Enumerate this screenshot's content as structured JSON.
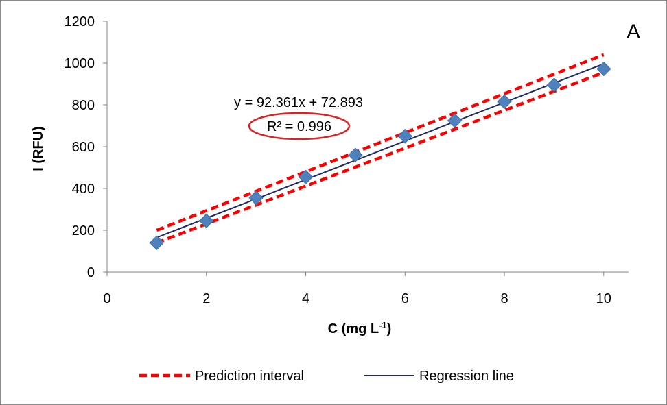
{
  "chart_data": {
    "type": "scatter",
    "panel_label": "A",
    "xlabel": "C (mg L",
    "xlabel_sup": "-1",
    "xlabel_end": ")",
    "ylabel": "I (RFU)",
    "xlim": [
      0,
      10.5
    ],
    "ylim": [
      0,
      1200
    ],
    "xticks": [
      0,
      2,
      4,
      6,
      8,
      10
    ],
    "yticks": [
      0,
      200,
      400,
      600,
      800,
      1000,
      1200
    ],
    "grid": false,
    "legend_position": "bottom",
    "series": [
      {
        "kind": "points",
        "marker": "diamond",
        "color": "#4f81bd",
        "x": [
          1,
          2,
          3,
          4,
          5,
          6,
          7,
          8,
          9,
          10
        ],
        "y": [
          140,
          245,
          355,
          455,
          560,
          650,
          725,
          815,
          895,
          972
        ]
      },
      {
        "name": "Prediction interval",
        "kind": "dashed-band",
        "color": "#ff0000",
        "x": [
          1,
          10
        ],
        "upper": [
          200,
          1040
        ],
        "lower": [
          140,
          955
        ]
      },
      {
        "name": "Regression line",
        "kind": "line",
        "color": "#1f2a6b",
        "slope": 92.361,
        "intercept": 72.893,
        "x": [
          1,
          10
        ]
      }
    ],
    "equation": "y = 92.361x + 72.893",
    "r2_label": "R² = 0.996",
    "r2_highlight_color": "#e02020"
  }
}
